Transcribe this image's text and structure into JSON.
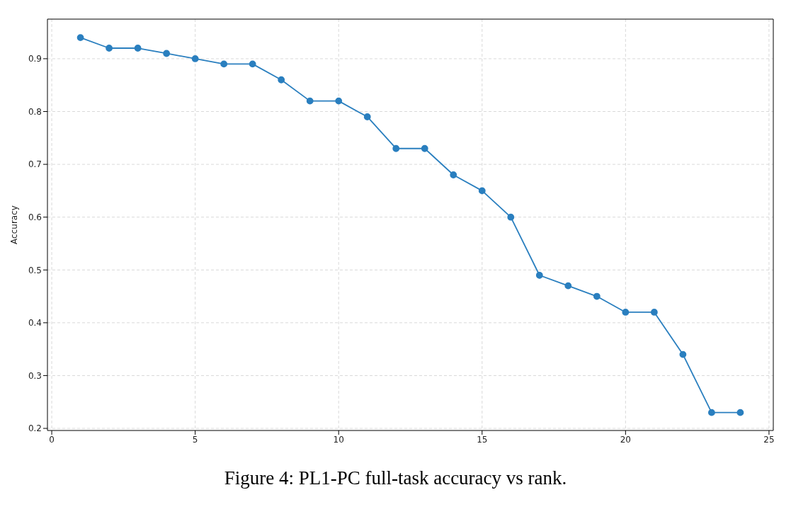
{
  "chart_data": {
    "type": "line",
    "ylabel": "Accuracy",
    "annotations": [
      "Figure 4: PL1-PC full-task accuracy vs rank."
    ],
    "x": [
      1,
      2,
      3,
      4,
      5,
      6,
      7,
      8,
      9,
      10,
      11,
      12,
      13,
      14,
      15,
      16,
      17,
      18,
      19,
      20,
      21,
      22,
      23,
      24
    ],
    "series": [
      {
        "color": "#2a7fbf",
        "values": [
          0.94,
          0.92,
          0.92,
          0.91,
          0.9,
          0.89,
          0.89,
          0.86,
          0.82,
          0.82,
          0.79,
          0.73,
          0.73,
          0.68,
          0.65,
          0.6,
          0.49,
          0.47,
          0.45,
          0.42,
          0.42,
          0.34,
          0.23,
          0.23
        ]
      }
    ],
    "xlim": [
      -0.15,
      25.15
    ],
    "xticks": [
      0,
      5,
      10,
      15,
      20,
      25
    ],
    "ylim": [
      0.196,
      0.975
    ],
    "yticks": [
      0.2,
      0.3,
      0.4,
      0.5,
      0.6,
      0.7,
      0.8,
      0.9
    ],
    "grid": true,
    "marker": "circle",
    "line_style": "solid",
    "legend": false
  }
}
